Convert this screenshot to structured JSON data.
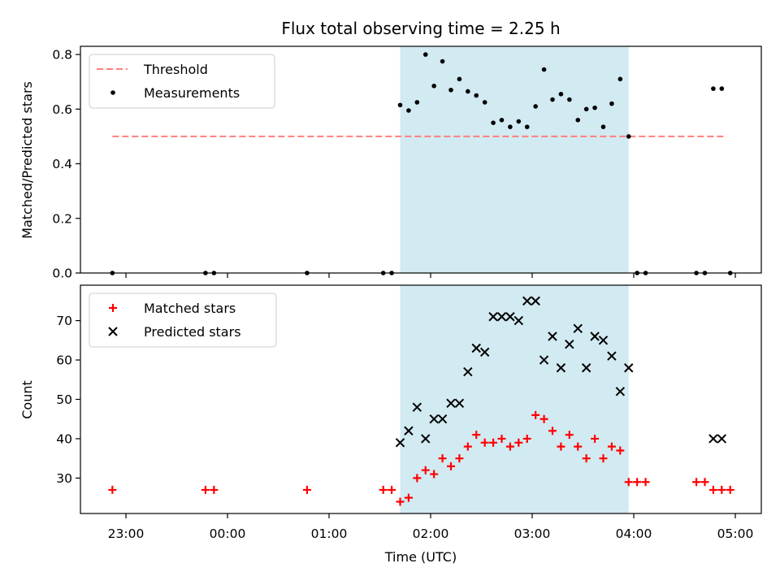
{
  "figure": {
    "title": "Flux total observing time = 2.25 h",
    "xlabel": "Time (UTC)",
    "x_ticks": [
      "23:00",
      "00:00",
      "01:00",
      "02:00",
      "03:00",
      "04:00",
      "05:00"
    ],
    "observing_window": {
      "start": "01:42",
      "end": "03:57",
      "color": "#add8e6"
    }
  },
  "chart_data": [
    {
      "type": "scatter",
      "title": "Flux total observing time = 2.25 h",
      "xlabel": "",
      "ylabel": "Matched/Predicted stars",
      "ylim": [
        0,
        0.83
      ],
      "y_ticks": [
        "0.0",
        "0.2",
        "0.4",
        "0.6",
        "0.8"
      ],
      "legend": {
        "placement": "top-left",
        "entries": [
          "Threshold",
          "Measurements"
        ]
      },
      "grid": false,
      "threshold": {
        "name": "Threshold",
        "y": 0.5,
        "x_start": "22:52",
        "x_end": "04:55",
        "color": "#ff7f7f",
        "style": "dashed"
      },
      "series": [
        {
          "name": "Measurements",
          "marker": "dot",
          "color": "#000000",
          "points": [
            [
              "22:52",
              0
            ],
            [
              "23:47",
              0
            ],
            [
              "23:52",
              0
            ],
            [
              "00:47",
              0
            ],
            [
              "01:32",
              0
            ],
            [
              "01:37",
              0
            ],
            [
              "01:42",
              0.615
            ],
            [
              "01:47",
              0.595
            ],
            [
              "01:52",
              0.625
            ],
            [
              "01:57",
              0.8
            ],
            [
              "02:02",
              0.685
            ],
            [
              "02:07",
              0.775
            ],
            [
              "02:12",
              0.67
            ],
            [
              "02:17",
              0.71
            ],
            [
              "02:22",
              0.665
            ],
            [
              "02:27",
              0.65
            ],
            [
              "02:32",
              0.625
            ],
            [
              "02:37",
              0.55
            ],
            [
              "02:42",
              0.56
            ],
            [
              "02:47",
              0.535
            ],
            [
              "02:52",
              0.555
            ],
            [
              "02:57",
              0.535
            ],
            [
              "03:02",
              0.61
            ],
            [
              "03:07",
              0.745
            ],
            [
              "03:12",
              0.635
            ],
            [
              "03:17",
              0.655
            ],
            [
              "03:22",
              0.635
            ],
            [
              "03:27",
              0.56
            ],
            [
              "03:32",
              0.6
            ],
            [
              "03:37",
              0.605
            ],
            [
              "03:42",
              0.535
            ],
            [
              "03:47",
              0.62
            ],
            [
              "03:52",
              0.71
            ],
            [
              "03:57",
              0.5
            ],
            [
              "04:02",
              0
            ],
            [
              "04:07",
              0
            ],
            [
              "04:37",
              0
            ],
            [
              "04:42",
              0
            ],
            [
              "04:47",
              0.675
            ],
            [
              "04:52",
              0.675
            ],
            [
              "04:57",
              0
            ]
          ]
        }
      ]
    },
    {
      "type": "scatter",
      "title": "",
      "xlabel": "Time (UTC)",
      "ylabel": "Count",
      "ylim": [
        21,
        79
      ],
      "y_ticks": [
        "30",
        "40",
        "50",
        "60",
        "70"
      ],
      "legend": {
        "placement": "top-left",
        "entries": [
          "Matched stars",
          "Predicted stars"
        ]
      },
      "grid": false,
      "series": [
        {
          "name": "Matched stars",
          "marker": "plus",
          "color": "#ff0000",
          "points": [
            [
              "22:52",
              27
            ],
            [
              "23:47",
              27
            ],
            [
              "23:52",
              27
            ],
            [
              "00:47",
              27
            ],
            [
              "01:32",
              27
            ],
            [
              "01:37",
              27
            ],
            [
              "01:42",
              24
            ],
            [
              "01:47",
              25
            ],
            [
              "01:52",
              30
            ],
            [
              "01:57",
              32
            ],
            [
              "02:02",
              31
            ],
            [
              "02:07",
              35
            ],
            [
              "02:12",
              33
            ],
            [
              "02:17",
              35
            ],
            [
              "02:22",
              38
            ],
            [
              "02:27",
              41
            ],
            [
              "02:32",
              39
            ],
            [
              "02:37",
              39
            ],
            [
              "02:42",
              40
            ],
            [
              "02:47",
              38
            ],
            [
              "02:52",
              39
            ],
            [
              "02:57",
              40
            ],
            [
              "03:02",
              46
            ],
            [
              "03:07",
              45
            ],
            [
              "03:12",
              42
            ],
            [
              "03:17",
              38
            ],
            [
              "03:22",
              41
            ],
            [
              "03:27",
              38
            ],
            [
              "03:32",
              35
            ],
            [
              "03:37",
              40
            ],
            [
              "03:42",
              35
            ],
            [
              "03:47",
              38
            ],
            [
              "03:52",
              37
            ],
            [
              "03:57",
              29
            ],
            [
              "04:02",
              29
            ],
            [
              "04:07",
              29
            ],
            [
              "04:37",
              29
            ],
            [
              "04:42",
              29
            ],
            [
              "04:47",
              27
            ],
            [
              "04:52",
              27
            ],
            [
              "04:57",
              27
            ]
          ]
        },
        {
          "name": "Predicted stars",
          "marker": "x",
          "color": "#000000",
          "points": [
            [
              "01:42",
              39
            ],
            [
              "01:47",
              42
            ],
            [
              "01:52",
              48
            ],
            [
              "01:57",
              40
            ],
            [
              "02:02",
              45
            ],
            [
              "02:07",
              45
            ],
            [
              "02:12",
              49
            ],
            [
              "02:17",
              49
            ],
            [
              "02:22",
              57
            ],
            [
              "02:27",
              63
            ],
            [
              "02:32",
              62
            ],
            [
              "02:37",
              71
            ],
            [
              "02:42",
              71
            ],
            [
              "02:47",
              71
            ],
            [
              "02:52",
              70
            ],
            [
              "02:57",
              75
            ],
            [
              "03:02",
              75
            ],
            [
              "03:07",
              60
            ],
            [
              "03:12",
              66
            ],
            [
              "03:17",
              58
            ],
            [
              "03:22",
              64
            ],
            [
              "03:27",
              68
            ],
            [
              "03:32",
              58
            ],
            [
              "03:37",
              66
            ],
            [
              "03:42",
              65
            ],
            [
              "03:47",
              61
            ],
            [
              "03:52",
              52
            ],
            [
              "03:57",
              58
            ],
            [
              "04:47",
              40
            ],
            [
              "04:52",
              40
            ]
          ]
        }
      ]
    }
  ]
}
